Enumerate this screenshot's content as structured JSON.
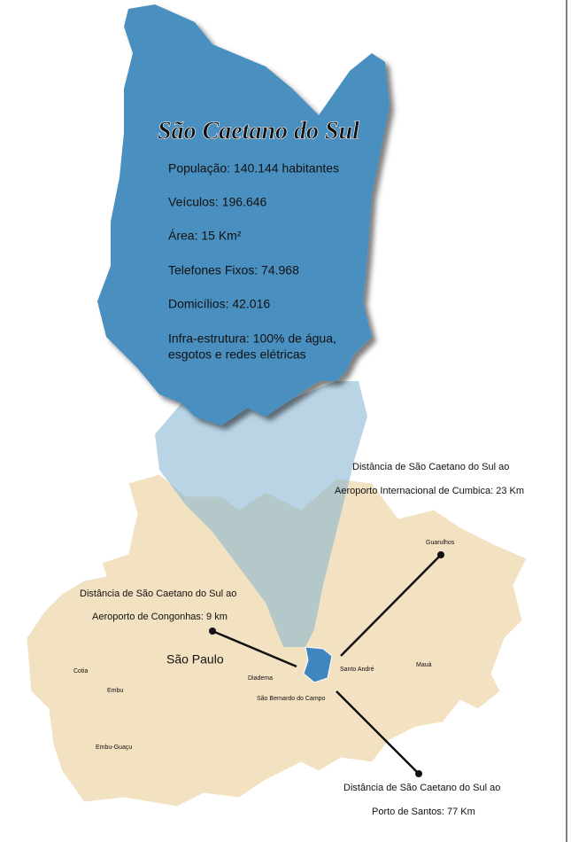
{
  "title": "São Caetano do Sul",
  "facts": [
    "População: 140.144 habitantes",
    "Veículos: 196.646",
    "Área: 15 Km²",
    "Telefones Fixos: 74.968",
    "Domicílios: 42.016",
    "Infra-estrutura: 100% de água,",
    "esgotos e redes elétricas"
  ],
  "cities": [
    "São Paulo",
    "Guarulhos",
    "Santo André",
    "Mauá",
    "Diadema",
    "São Bernardo do Campo",
    "Cotia",
    "Embu",
    "Embu-Guaçu"
  ],
  "distances": [
    {
      "lines": [
        "Distância de São Caetano do Sul ao",
        "Aeroporto Internacional de Cumbica: 23 Km"
      ]
    },
    {
      "lines": [
        "Distância de São Caetano do Sul ao",
        "Aeroporto de Congonhas: 9 km"
      ]
    },
    {
      "lines": [
        "Distância de São Caetano do Sul ao",
        "Porto de Santos: 77 Km"
      ]
    }
  ]
}
